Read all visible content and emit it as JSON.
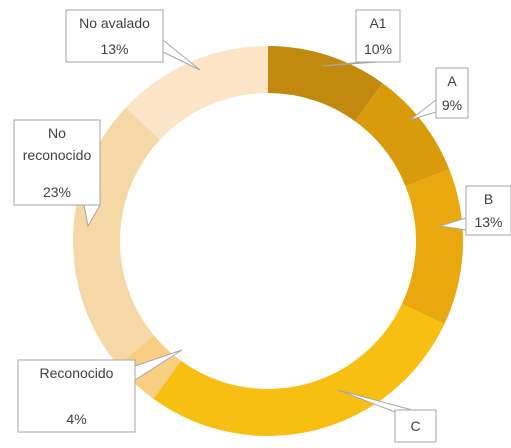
{
  "chart_data": {
    "type": "donut",
    "categories": [
      "A1",
      "A",
      "B",
      "C",
      "Reconocido",
      "No reconocido",
      "No avalado"
    ],
    "values": [
      10,
      9,
      13,
      28,
      4,
      23,
      13
    ],
    "value_labels": [
      "10%",
      "9%",
      "13%",
      null,
      "4%",
      "23%",
      "13%"
    ],
    "colors": [
      "#c18a0e",
      "#d99b0c",
      "#e9a90e",
      "#f6bf12",
      "#f9cd82",
      "#f6d8a6",
      "#fbe5c6"
    ]
  }
}
